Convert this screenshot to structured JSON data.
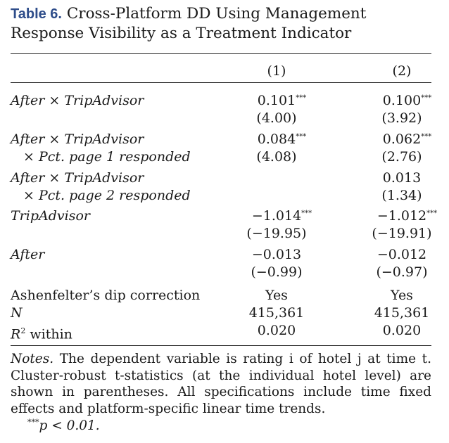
{
  "title": {
    "label": "Table 6.",
    "text": "Cross-Platform DD Using Management Response Visibility as a Treatment Indicator"
  },
  "columns": [
    "(1)",
    "(2)"
  ],
  "rows": [
    {
      "label": "After × TripAdvisor",
      "c1": "0.101",
      "c1_stars": "***",
      "c2": "0.100",
      "c2_stars": "***"
    },
    {
      "label": "",
      "c1": "(4.00)",
      "c2": "(3.92)"
    },
    {
      "label": "After × TripAdvisor",
      "c1": "0.084",
      "c1_stars": "***",
      "c2": "0.062",
      "c2_stars": "***"
    },
    {
      "label": "× Pct. page 1 responded",
      "c1": "(4.08)",
      "c2": "(2.76)"
    },
    {
      "label": "After × TripAdvisor",
      "c1": "",
      "c2": "0.013"
    },
    {
      "label": "× Pct. page 2 responded",
      "c1": "",
      "c2": "(1.34)"
    },
    {
      "label": "TripAdvisor",
      "c1": "−1.014",
      "c1_stars": "***",
      "c2": "−1.012",
      "c2_stars": "***"
    },
    {
      "label": "",
      "c1": "(−19.95)",
      "c2": "(−19.91)"
    },
    {
      "label": "After",
      "c1": "−0.013",
      "c2": "−0.012"
    },
    {
      "label": "",
      "c1": "(−0.99)",
      "c2": "(−0.97)"
    }
  ],
  "summary": [
    {
      "label": "Ashenfelter’s dip correction",
      "c1": "Yes",
      "c2": "Yes"
    },
    {
      "label": "N",
      "c1": "415,361",
      "c2": "415,361"
    },
    {
      "label_main": "R",
      "label_sup": "2",
      "label_rest": " within",
      "c1": "0.020",
      "c2": "0.020"
    }
  ],
  "notes": {
    "lead": "Notes.",
    "text": "The dependent variable is rating i of hotel j at time t. Cluster-robust t-statistics (at the individual hotel level) are shown in parentheses. All specifications include time fixed effects and platform-specific linear time trends.",
    "sig_stars": "***",
    "sig_text": "p < 0.01."
  }
}
